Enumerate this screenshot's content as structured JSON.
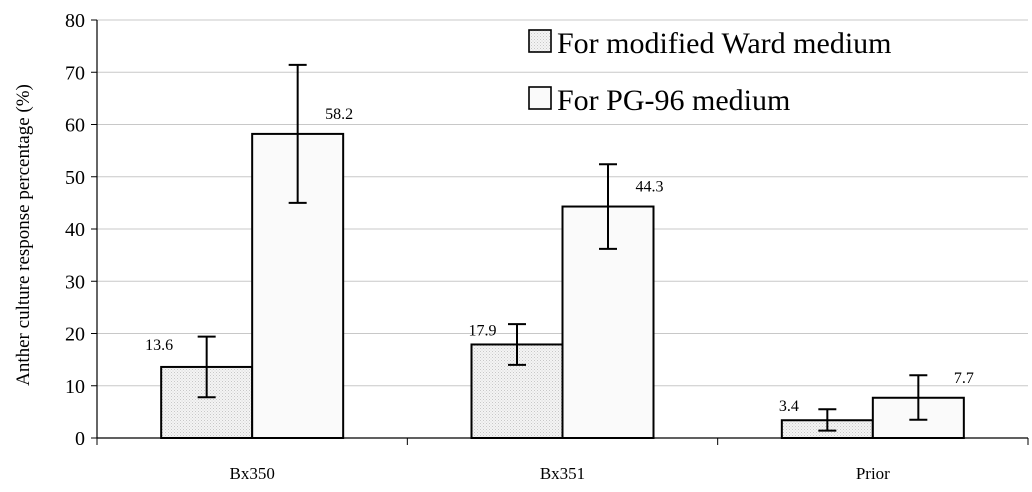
{
  "chart_data": {
    "type": "bar",
    "title": "",
    "xlabel": "",
    "ylabel": "Anther culture response percentage (%)",
    "ylim": [
      0,
      80
    ],
    "yticks": [
      0,
      10,
      20,
      30,
      40,
      50,
      60,
      70,
      80
    ],
    "grid": "horizontal",
    "legend_position": "top-right",
    "categories": [
      "Bx350",
      "Bx351",
      "Prior"
    ],
    "series": [
      {
        "name": "For modified Ward medium",
        "values": [
          13.6,
          17.9,
          3.4
        ],
        "error_low": [
          7.8,
          14.0,
          1.4
        ],
        "error_high": [
          19.4,
          21.8,
          5.5
        ],
        "labels": [
          "13.6",
          "17.9",
          "3.4"
        ],
        "fill": "#ececec"
      },
      {
        "name": "For PG-96 medium",
        "values": [
          58.2,
          44.3,
          7.7
        ],
        "error_low": [
          45.0,
          36.2,
          3.5
        ],
        "error_high": [
          71.4,
          52.4,
          12.0
        ],
        "labels": [
          "58.2",
          "44.3",
          "7.7"
        ],
        "fill": "#fafafa"
      }
    ]
  }
}
